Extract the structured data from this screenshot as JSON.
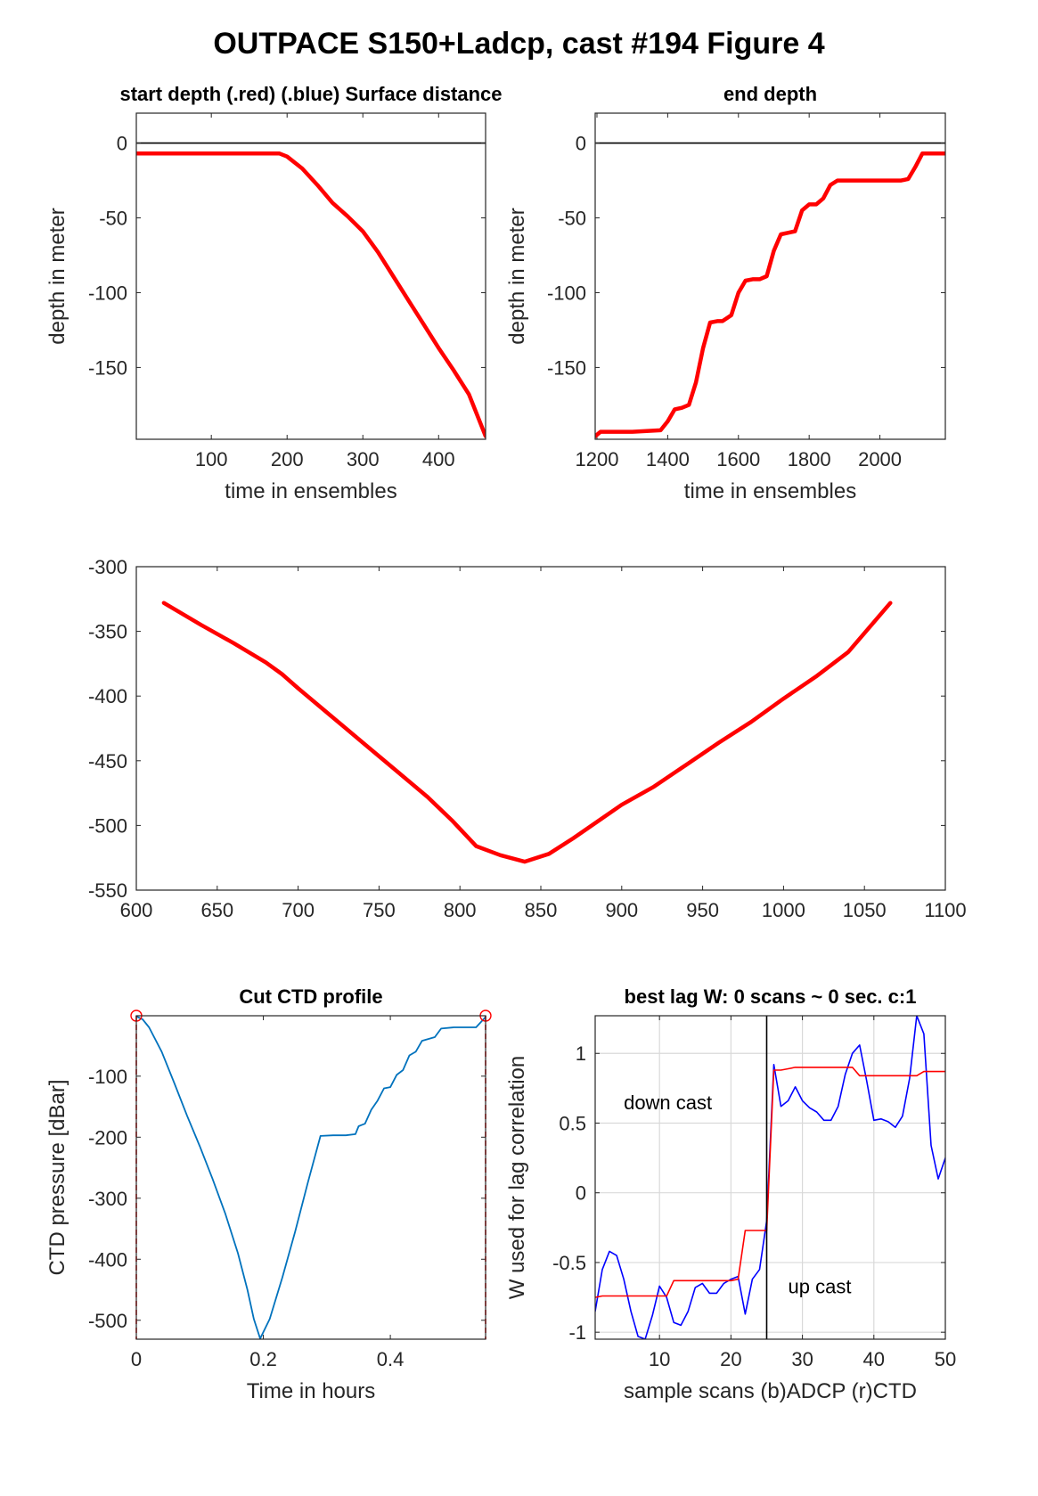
{
  "figure_title": "OUTPACE S150+Ladcp, cast #194    Figure 4",
  "chart_data": [
    {
      "id": "start-depth",
      "type": "line",
      "title": "start depth (.red) (.blue) Surface distance",
      "xlabel": "time in ensembles",
      "ylabel": "depth in meter",
      "xlim": [
        1,
        462
      ],
      "ylim": [
        -198,
        20
      ],
      "xticks": [
        100,
        200,
        300,
        400
      ],
      "yticks": [
        0,
        -50,
        -100,
        -150
      ],
      "grid": false,
      "refline_y": 0,
      "series": [
        {
          "color": "#ff0000",
          "x": [
            1,
            50,
            100,
            150,
            175,
            190,
            200,
            220,
            240,
            260,
            280,
            300,
            320,
            340,
            360,
            380,
            400,
            420,
            440,
            462
          ],
          "y": [
            -7,
            -7,
            -7,
            -7,
            -7,
            -7,
            -9,
            -17,
            -28,
            -40,
            -49,
            -59,
            -73,
            -89,
            -105,
            -121,
            -137,
            -152,
            -168,
            -196
          ]
        }
      ]
    },
    {
      "id": "end-depth",
      "type": "line",
      "title": "end depth",
      "xlabel": "time in ensembles",
      "ylabel": "depth in meter",
      "xlim": [
        1195,
        2185
      ],
      "ylim": [
        -198,
        20
      ],
      "xticks": [
        1200,
        1400,
        1600,
        1800,
        2000
      ],
      "yticks": [
        0,
        -50,
        -100,
        -150
      ],
      "grid": false,
      "refline_y": 0,
      "series": [
        {
          "color": "#ff0000",
          "x": [
            1195,
            1210,
            1250,
            1300,
            1380,
            1400,
            1420,
            1440,
            1460,
            1480,
            1500,
            1520,
            1540,
            1555,
            1580,
            1600,
            1620,
            1640,
            1660,
            1680,
            1700,
            1720,
            1740,
            1760,
            1780,
            1800,
            1820,
            1840,
            1860,
            1880,
            1900,
            1940,
            1980,
            2020,
            2060,
            2080,
            2100,
            2120,
            2160,
            2185
          ],
          "y": [
            -196,
            -193,
            -193,
            -193,
            -192,
            -186,
            -178,
            -177,
            -175,
            -160,
            -137,
            -120,
            -119,
            -119,
            -115,
            -100,
            -92,
            -91,
            -91,
            -89,
            -72,
            -61,
            -60,
            -59,
            -45,
            -41,
            -41,
            -37,
            -28,
            -25,
            -25,
            -25,
            -25,
            -25,
            -25,
            -24,
            -16,
            -7,
            -7,
            -7
          ]
        }
      ]
    },
    {
      "id": "middle-depth",
      "type": "line",
      "title": "",
      "xlabel": "",
      "ylabel": "",
      "xlim": [
        600,
        1100
      ],
      "ylim": [
        -550,
        -300
      ],
      "xticks": [
        600,
        650,
        700,
        750,
        800,
        850,
        900,
        950,
        1000,
        1050,
        1100
      ],
      "yticks": [
        -300,
        -350,
        -400,
        -450,
        -500,
        -550
      ],
      "grid": false,
      "series": [
        {
          "color": "#ff0000",
          "x": [
            617,
            640,
            660,
            680,
            690,
            700,
            720,
            740,
            760,
            780,
            795,
            810,
            825,
            840,
            855,
            870,
            885,
            900,
            920,
            940,
            960,
            980,
            1000,
            1020,
            1040,
            1066
          ],
          "y": [
            -328,
            -345,
            -359,
            -374,
            -383,
            -394,
            -415,
            -436,
            -457,
            -478,
            -496,
            -516,
            -523,
            -528,
            -522,
            -510,
            -497,
            -484,
            -470,
            -453,
            -436,
            -420,
            -402,
            -385,
            -366,
            -328
          ]
        }
      ]
    },
    {
      "id": "cut-ctd-profile",
      "type": "line",
      "title": "Cut CTD profile",
      "xlabel": "Time in hours",
      "ylabel": "CTD pressure [dBar]",
      "xlim": [
        0,
        0.55
      ],
      "ylim": [
        -531,
        -1
      ],
      "xticks": [
        0,
        0.2,
        0.4
      ],
      "xtick_labels": [
        "0",
        "0.2",
        "0.4"
      ],
      "yticks": [
        -100,
        -200,
        -300,
        -400,
        -500
      ],
      "grid": false,
      "cut_markers_x": [
        0,
        0.55
      ],
      "series": [
        {
          "color": "#0072bd",
          "x": [
            0,
            0.01,
            0.02,
            0.04,
            0.06,
            0.08,
            0.1,
            0.12,
            0.14,
            0.16,
            0.175,
            0.185,
            0.195,
            0.21,
            0.23,
            0.25,
            0.27,
            0.29,
            0.31,
            0.33,
            0.345,
            0.35,
            0.355,
            0.36,
            0.37,
            0.38,
            0.39,
            0.4,
            0.41,
            0.42,
            0.43,
            0.44,
            0.45,
            0.47,
            0.48,
            0.5,
            0.52,
            0.535,
            0.55
          ],
          "y": [
            -2,
            -7,
            -20,
            -60,
            -112,
            -165,
            -215,
            -268,
            -325,
            -390,
            -450,
            -498,
            -530,
            -498,
            -430,
            -355,
            -275,
            -198,
            -197,
            -197,
            -195,
            -182,
            -180,
            -178,
            -155,
            -140,
            -120,
            -118,
            -98,
            -90,
            -66,
            -60,
            -42,
            -36,
            -22,
            -20,
            -20,
            -20,
            -3
          ]
        }
      ]
    },
    {
      "id": "best-lag",
      "type": "line",
      "title": "best lag W: 0 scans ~ 0 sec.  c:1",
      "xlabel": "sample scans (b)ADCP (r)CTD",
      "ylabel": "W used for lag correlation",
      "xlim": [
        1,
        50
      ],
      "ylim": [
        -1.05,
        1.27
      ],
      "xticks": [
        10,
        20,
        30,
        40,
        50
      ],
      "yticks": [
        1,
        0.5,
        0,
        -0.5,
        -1
      ],
      "ytick_labels": [
        "1",
        "0.5",
        "0",
        "-0.5",
        "-1"
      ],
      "grid": true,
      "vline_x": 25,
      "annotations": [
        {
          "text": "down cast",
          "x": 5,
          "y": 0.6
        },
        {
          "text": "up cast",
          "x": 28,
          "y": -0.72
        }
      ],
      "series": [
        {
          "color": "#0000ff",
          "x": [
            1,
            2,
            3,
            4,
            5,
            6,
            7,
            8,
            9,
            10,
            11,
            12,
            13,
            14,
            15,
            16,
            17,
            18,
            19,
            20,
            21,
            22,
            23,
            24,
            25,
            26,
            27,
            28,
            29,
            30,
            31,
            32,
            33,
            34,
            35,
            36,
            37,
            38,
            39,
            40,
            41,
            42,
            43,
            44,
            45,
            46,
            47,
            48,
            49,
            50
          ],
          "y": [
            -0.85,
            -0.55,
            -0.42,
            -0.45,
            -0.62,
            -0.85,
            -1.03,
            -1.05,
            -0.88,
            -0.67,
            -0.75,
            -0.93,
            -0.95,
            -0.85,
            -0.68,
            -0.65,
            -0.72,
            -0.72,
            -0.65,
            -0.62,
            -0.6,
            -0.87,
            -0.62,
            -0.55,
            -0.2,
            0.92,
            0.62,
            0.66,
            0.76,
            0.66,
            0.61,
            0.58,
            0.52,
            0.52,
            0.62,
            0.85,
            1.0,
            1.06,
            0.8,
            0.52,
            0.53,
            0.51,
            0.47,
            0.55,
            0.82,
            1.27,
            1.14,
            0.34,
            0.1,
            0.25
          ]
        },
        {
          "color": "#ff0000",
          "x": [
            1,
            2,
            5,
            8,
            11,
            12,
            14,
            17,
            20,
            21,
            22,
            23,
            24,
            25,
            26,
            27,
            28,
            29,
            30,
            33,
            36,
            37,
            38,
            40,
            44,
            46,
            47,
            48,
            50
          ],
          "y": [
            -0.75,
            -0.74,
            -0.74,
            -0.74,
            -0.74,
            -0.63,
            -0.63,
            -0.63,
            -0.63,
            -0.62,
            -0.27,
            -0.27,
            -0.27,
            -0.27,
            0.88,
            0.88,
            0.89,
            0.9,
            0.9,
            0.9,
            0.9,
            0.9,
            0.84,
            0.84,
            0.84,
            0.84,
            0.87,
            0.87,
            0.87
          ]
        }
      ]
    }
  ]
}
